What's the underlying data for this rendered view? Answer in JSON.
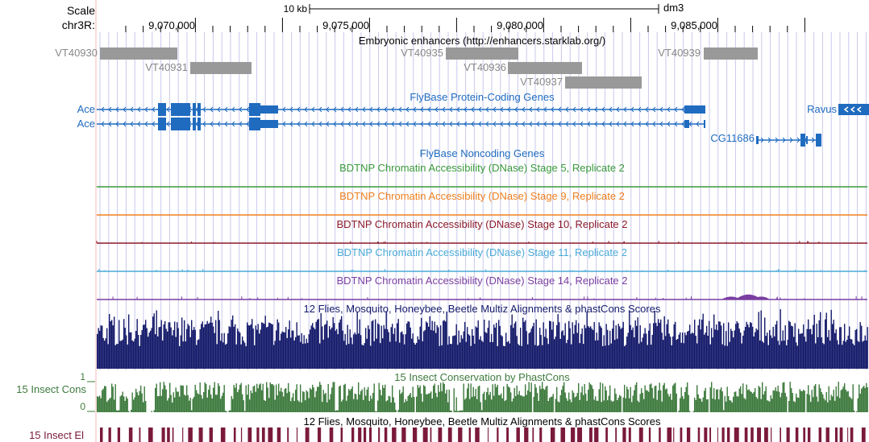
{
  "ruler": {
    "scale_label": "Scale",
    "chrom_label": "chr3R:",
    "scale_bar_label": "10 kb",
    "assembly": "dm3",
    "positions": [
      "9,070,000",
      "9,075,000",
      "9,080,000",
      "9,085,000"
    ]
  },
  "tracks": {
    "enhancers": {
      "title": "Embryonic enhancers (http://enhancers.starklab.org/)",
      "items": [
        "VT40930",
        "VT40931",
        "VT40935",
        "VT40936",
        "VT40937",
        "VT40939"
      ]
    },
    "protein_genes": {
      "title": "FlyBase Protein-Coding Genes",
      "genes": [
        "Ace",
        "Ace",
        "Ravus",
        "CG11686"
      ]
    },
    "noncoding": {
      "title": "FlyBase Noncoding Genes"
    },
    "dnase": [
      {
        "title": "BDTNP Chromatin Accessibility (DNase) Stage 5, Replicate 2",
        "color": "#3a9a3a"
      },
      {
        "title": "BDTNP Chromatin Accessibility (DNase) Stage 9, Replicate 2",
        "color": "#f08020"
      },
      {
        "title": "BDTNP Chromatin Accessibility (DNase) Stage 10, Replicate 2",
        "color": "#8b1a2a"
      },
      {
        "title": "BDTNP Chromatin Accessibility (DNase) Stage 11, Replicate 2",
        "color": "#4aaad6"
      },
      {
        "title": "BDTNP Chromatin Accessibility (DNase) Stage 14, Replicate 2",
        "color": "#7a3ea0"
      }
    ],
    "multiz": {
      "title": "12 Flies, Mosquito, Honeybee, Beetle Multiz Alignments & phastCons Scores",
      "color": "#141a6a"
    },
    "phastcons": {
      "title": "15 Insect Conservation by PhastCons",
      "side_label": "15 Insect Cons",
      "axis_max": "1",
      "axis_min": "0",
      "color": "#3e7a3e"
    },
    "elements": {
      "title": "12 Flies, Mosquito, Honeybee, Beetle Multiz Alignments & phastCons Scores",
      "side_label": "15 Insect El",
      "color": "#7a1a3a"
    }
  },
  "colors": {
    "gene": "#1f6bbf",
    "enhancer": "#999999",
    "grid": "#c8c8ee",
    "margin_line": "#f2b8b8"
  }
}
